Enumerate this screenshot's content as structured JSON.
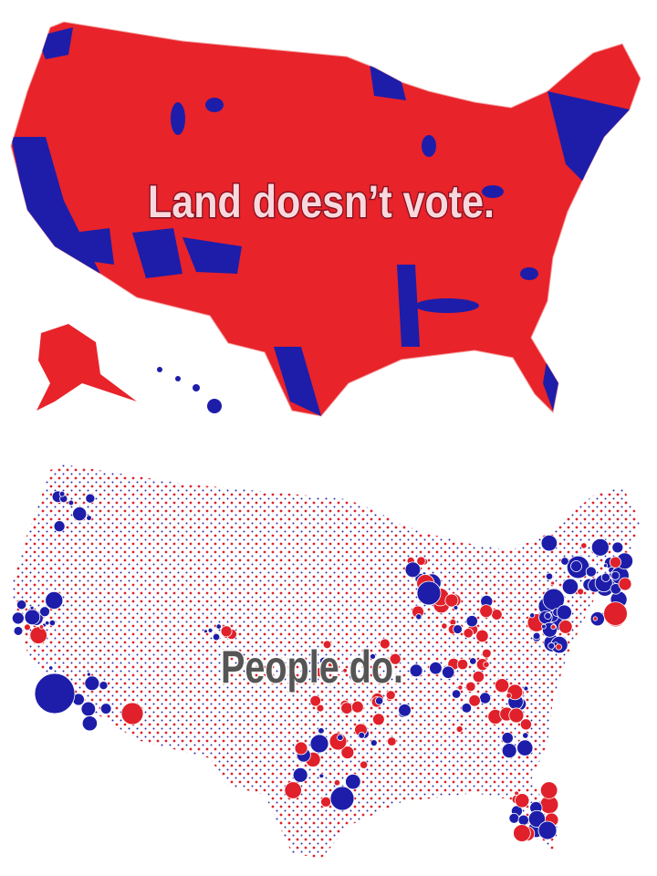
{
  "top_map": {
    "caption": "Land doesn’t vote."
  },
  "bottom_map": {
    "caption": "People do."
  }
}
